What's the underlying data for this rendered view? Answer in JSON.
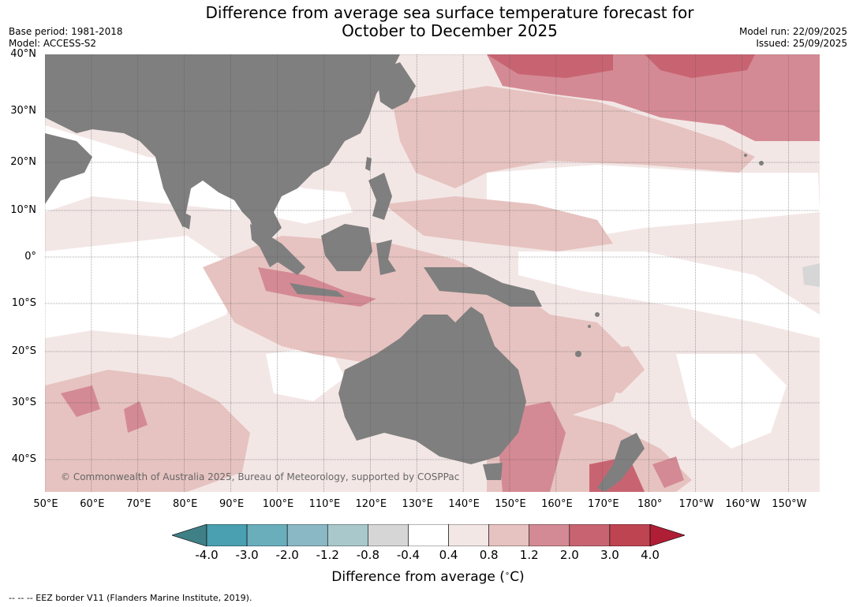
{
  "title_line1": "Difference from average sea surface temperature forecast for",
  "title_line2": "October to December 2025",
  "base_period": "Base period: 1981-2018",
  "model": "Model: ACCESS-S2",
  "model_run": "Model run: 22/09/2025",
  "issued": "Issued: 25/09/2025",
  "lat_labels": [
    "40°N",
    "30°N",
    "20°N",
    "10°N",
    "0°",
    "10°S",
    "20°S",
    "30°S",
    "40°S"
  ],
  "lon_labels": [
    "50°E",
    "60°E",
    "70°E",
    "80°E",
    "90°E",
    "100°E",
    "110°E",
    "120°E",
    "130°E",
    "140°E",
    "150°E",
    "160°E",
    "170°E",
    "180°",
    "170°W",
    "160°W",
    "150°W"
  ],
  "copyright": "© Commonwealth of Australia 2025, Bureau of Meteorology, supported by COSPPac",
  "colorbar": {
    "ticks": [
      "-4.0",
      "-3.0",
      "-2.0",
      "-1.2",
      "-0.8",
      "-0.4",
      "0.4",
      "0.8",
      "1.2",
      "2.0",
      "3.0",
      "4.0"
    ],
    "colors": [
      "#3f7f86",
      "#4a9fb0",
      "#6aaebc",
      "#8ab8c4",
      "#a9c8cc",
      "#d6d6d6",
      "#ffffff",
      "#f3e7e6",
      "#e6c3c0",
      "#d48a94",
      "#c86472",
      "#bf4452",
      "#b01e36"
    ],
    "title": "Difference from average (",
    "title_unit": "∘",
    "title_end": "C)"
  },
  "footnote": "--  --  -- EEZ border V11 (Flanders Marine Institute, 2019).",
  "colors": {
    "land": "#7f7f7f",
    "grid": "#555555"
  }
}
